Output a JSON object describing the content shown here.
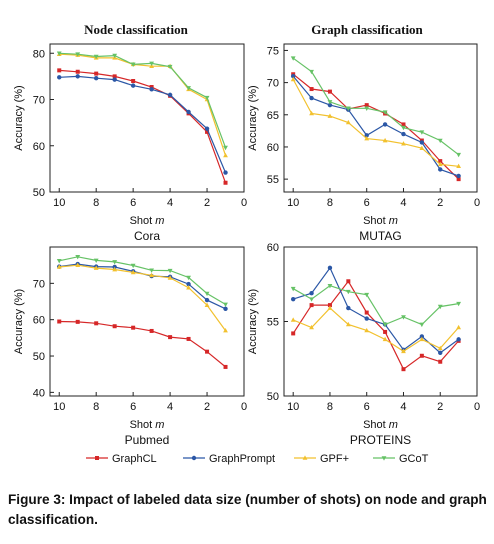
{
  "column_titles": [
    "Node classification",
    "Graph classification"
  ],
  "legend": [
    {
      "name": "GraphCL",
      "color": "#d62728"
    },
    {
      "name": "GraphPrompt",
      "color": "#2b57a6"
    },
    {
      "name": "GPF+",
      "color": "#f2c12e"
    },
    {
      "name": "GCoT",
      "color": "#66c266"
    }
  ],
  "caption": "Figure 3: Impact of labeled data size (number of shots) on node and graph classification.",
  "chart_data": [
    {
      "type": "line",
      "dataset": "Cora",
      "xlabel": "Shot",
      "xlabel_var": "m",
      "ylabel": "Accuracy (%)",
      "xlim": [
        10.5,
        0
      ],
      "ylim": [
        50,
        82
      ],
      "xticks": [
        10,
        8,
        6,
        4,
        2,
        0
      ],
      "yticks": [
        50,
        60,
        70,
        80
      ],
      "x": [
        10,
        9,
        8,
        7,
        6,
        5,
        4,
        3,
        2,
        1
      ],
      "series": [
        {
          "name": "GraphCL",
          "values": [
            76.3,
            76.0,
            75.6,
            75.0,
            74.0,
            72.7,
            70.8,
            67.0,
            63.0,
            52.0
          ]
        },
        {
          "name": "GraphPrompt",
          "values": [
            74.8,
            75.0,
            74.6,
            74.3,
            73.0,
            72.2,
            71.0,
            67.3,
            63.7,
            54.2
          ]
        },
        {
          "name": "GPF+",
          "values": [
            79.8,
            79.6,
            79.0,
            79.0,
            77.6,
            77.2,
            77.2,
            72.2,
            70.0,
            57.9
          ]
        },
        {
          "name": "GCoT",
          "values": [
            80.0,
            79.8,
            79.3,
            79.5,
            77.6,
            77.8,
            77.1,
            72.5,
            70.4,
            59.6
          ]
        }
      ]
    },
    {
      "type": "line",
      "dataset": "MUTAG",
      "xlabel": "Shot",
      "xlabel_var": "m",
      "ylabel": "Accuracy (%)",
      "xlim": [
        10.5,
        0
      ],
      "ylim": [
        53,
        76
      ],
      "xticks": [
        10,
        8,
        6,
        4,
        2,
        0
      ],
      "yticks": [
        55,
        60,
        65,
        70,
        75
      ],
      "x": [
        10,
        9,
        8,
        7,
        6,
        5,
        4,
        3,
        2,
        1
      ],
      "series": [
        {
          "name": "GraphCL",
          "values": [
            71.3,
            69.0,
            68.6,
            65.9,
            66.5,
            65.2,
            63.5,
            61.0,
            57.8,
            55.0
          ]
        },
        {
          "name": "GraphPrompt",
          "values": [
            71.0,
            67.6,
            66.5,
            65.8,
            61.8,
            63.5,
            62.0,
            60.7,
            56.5,
            55.5
          ]
        },
        {
          "name": "GPF+",
          "values": [
            70.5,
            65.2,
            64.8,
            63.8,
            61.3,
            61.0,
            60.5,
            59.8,
            57.3,
            57.0
          ]
        },
        {
          "name": "GCoT",
          "values": [
            73.8,
            71.7,
            67.0,
            66.0,
            66.0,
            65.4,
            63.0,
            62.3,
            61.0,
            58.8
          ]
        }
      ]
    },
    {
      "type": "line",
      "dataset": "Pubmed",
      "xlabel": "Shot",
      "xlabel_var": "m",
      "ylabel": "Accuracy (%)",
      "xlim": [
        10.5,
        0
      ],
      "ylim": [
        39,
        80
      ],
      "xticks": [
        10,
        8,
        6,
        4,
        2,
        0
      ],
      "yticks": [
        40,
        50,
        60,
        70
      ],
      "x": [
        10,
        9,
        8,
        7,
        6,
        5,
        4,
        3,
        2,
        1
      ],
      "series": [
        {
          "name": "GraphCL",
          "values": [
            59.5,
            59.4,
            59.0,
            58.2,
            57.8,
            56.9,
            55.2,
            54.7,
            51.2,
            47.0
          ]
        },
        {
          "name": "GraphPrompt",
          "values": [
            74.6,
            75.3,
            74.6,
            74.5,
            73.3,
            72.0,
            71.8,
            69.8,
            65.4,
            63.0
          ]
        },
        {
          "name": "GPF+",
          "values": [
            74.5,
            75.0,
            74.2,
            73.8,
            73.0,
            72.2,
            71.5,
            68.8,
            64.0,
            57.0
          ]
        },
        {
          "name": "GCoT",
          "values": [
            76.2,
            77.3,
            76.3,
            75.9,
            74.9,
            73.6,
            73.5,
            71.6,
            67.2,
            64.2
          ]
        }
      ]
    },
    {
      "type": "line",
      "dataset": "PROTEINS",
      "xlabel": "Shot",
      "xlabel_var": "m",
      "ylabel": "Accuracy (%)",
      "xlim": [
        10.5,
        0
      ],
      "ylim": [
        50,
        60
      ],
      "xticks": [
        10,
        8,
        6,
        4,
        2,
        0
      ],
      "yticks": [
        50,
        55,
        60
      ],
      "x": [
        10,
        9,
        8,
        7,
        6,
        5,
        4,
        3,
        2,
        1
      ],
      "series": [
        {
          "name": "GraphCL",
          "values": [
            54.2,
            56.1,
            56.1,
            57.7,
            55.6,
            54.3,
            51.8,
            52.7,
            52.3,
            53.7
          ]
        },
        {
          "name": "GraphPrompt",
          "values": [
            56.5,
            56.9,
            58.6,
            55.9,
            55.2,
            54.8,
            53.1,
            54.0,
            52.9,
            53.8
          ]
        },
        {
          "name": "GPF+",
          "values": [
            55.1,
            54.6,
            55.9,
            54.8,
            54.4,
            53.8,
            53.0,
            53.8,
            53.2,
            54.6
          ]
        },
        {
          "name": "GCoT",
          "values": [
            57.2,
            56.5,
            57.4,
            57.0,
            56.8,
            54.8,
            55.3,
            54.8,
            56.0,
            56.2
          ]
        }
      ]
    }
  ]
}
